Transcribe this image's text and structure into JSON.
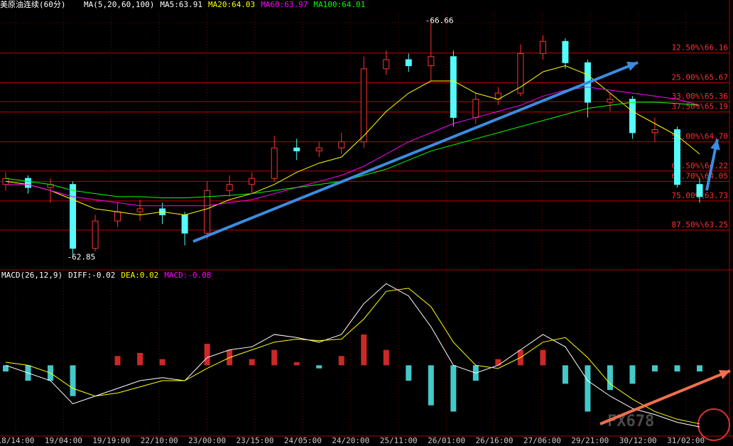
{
  "chart_data": {
    "type": "candlestick",
    "title": "美原油连续(60分)",
    "indicator_labels": [
      {
        "text": "MA(5,20,60,100)",
        "color": "#ffffff"
      },
      {
        "text": "MA5:63.91",
        "color": "#ffffff"
      },
      {
        "text": "MA20:64.03",
        "color": "#ffff00"
      },
      {
        "text": "MA60:63.97",
        "color": "#ff00ff"
      },
      {
        "text": "MA100:64.01",
        "color": "#00ff00"
      }
    ],
    "x_labels": [
      "18/14:00",
      "19/04:00",
      "19/19:00",
      "22/10:00",
      "23/00:00",
      "23/15:00",
      "24/05:00",
      "24/20:00",
      "25/11:00",
      "26/01:00",
      "26/16:00",
      "27/06:00",
      "29/21:00",
      "30/12:00",
      "31/02:00"
    ],
    "ylim": [
      62.62,
      66.82
    ],
    "up_color": "#ff3232",
    "down_color": "#54fcfc",
    "ohlc": [
      [
        64.0,
        64.2,
        63.9,
        64.1
      ],
      [
        64.1,
        64.15,
        63.85,
        63.95
      ],
      [
        63.95,
        64.1,
        63.7,
        64.0
      ],
      [
        64.0,
        64.05,
        62.85,
        62.95
      ],
      [
        62.95,
        63.5,
        62.9,
        63.4
      ],
      [
        63.4,
        63.7,
        63.3,
        63.55
      ],
      [
        63.55,
        63.75,
        63.4,
        63.6
      ],
      [
        63.6,
        63.7,
        63.35,
        63.5
      ],
      [
        63.5,
        63.55,
        63.0,
        63.2
      ],
      [
        63.2,
        64.05,
        63.1,
        63.9
      ],
      [
        63.9,
        64.15,
        63.8,
        64.0
      ],
      [
        64.0,
        64.2,
        63.85,
        64.1
      ],
      [
        64.1,
        64.8,
        64.05,
        64.6
      ],
      [
        64.6,
        64.75,
        64.4,
        64.55
      ],
      [
        64.55,
        64.7,
        64.45,
        64.6
      ],
      [
        64.6,
        64.85,
        64.5,
        64.7
      ],
      [
        64.7,
        66.1,
        64.6,
        65.9
      ],
      [
        65.9,
        66.2,
        65.8,
        66.05
      ],
      [
        66.05,
        66.15,
        65.85,
        65.95
      ],
      [
        65.95,
        66.66,
        65.7,
        66.1
      ],
      [
        66.1,
        66.2,
        64.95,
        65.1
      ],
      [
        65.1,
        65.5,
        65.0,
        65.4
      ],
      [
        65.4,
        65.6,
        65.3,
        65.5
      ],
      [
        65.5,
        66.3,
        65.45,
        66.15
      ],
      [
        66.15,
        66.45,
        66.05,
        66.35
      ],
      [
        66.35,
        66.4,
        65.9,
        66.0
      ],
      [
        66.0,
        66.05,
        65.1,
        65.35
      ],
      [
        65.35,
        65.5,
        65.2,
        65.4
      ],
      [
        65.4,
        65.45,
        64.75,
        64.85
      ],
      [
        64.85,
        65.1,
        64.7,
        64.9
      ],
      [
        64.9,
        64.95,
        63.95,
        64.0
      ],
      [
        64.0,
        64.1,
        63.7,
        63.8
      ]
    ],
    "series": [
      {
        "name": "MA20",
        "color": "#ffff00",
        "values": [
          64.05,
          64.0,
          63.9,
          63.75,
          63.6,
          63.55,
          63.5,
          63.55,
          63.5,
          63.6,
          63.75,
          63.85,
          64.0,
          64.2,
          64.35,
          64.45,
          64.8,
          65.2,
          65.5,
          65.7,
          65.7,
          65.5,
          65.4,
          65.6,
          65.85,
          65.95,
          65.8,
          65.5,
          65.2,
          65.0,
          64.8,
          64.5
        ]
      },
      {
        "name": "MA60",
        "color": "#ff00ff",
        "values": [
          64.0,
          64.0,
          63.9,
          63.8,
          63.75,
          63.7,
          63.65,
          63.65,
          63.65,
          63.65,
          63.7,
          63.75,
          63.85,
          63.95,
          64.05,
          64.15,
          64.3,
          64.5,
          64.7,
          64.85,
          65.0,
          65.1,
          65.2,
          65.3,
          65.45,
          65.55,
          65.6,
          65.55,
          65.5,
          65.45,
          65.4,
          65.3
        ]
      },
      {
        "name": "MA100",
        "color": "#00ff00",
        "values": [
          64.1,
          64.05,
          64.0,
          63.9,
          63.85,
          63.8,
          63.8,
          63.78,
          63.78,
          63.8,
          63.82,
          63.85,
          63.9,
          63.95,
          64.0,
          64.05,
          64.15,
          64.25,
          64.4,
          64.55,
          64.65,
          64.75,
          64.85,
          64.95,
          65.05,
          65.15,
          65.25,
          65.3,
          65.35,
          65.35,
          65.33,
          65.3
        ]
      }
    ],
    "fib_levels": [
      {
        "value": 66.16,
        "label": "12.50%\\66.16"
      },
      {
        "value": 65.67,
        "label": "25.00%\\65.67"
      },
      {
        "value": 65.36,
        "label": "33.00%\\65.36"
      },
      {
        "value": 65.19,
        "label": "37.50%\\65.19"
      },
      {
        "value": 64.7,
        "label": "50.00%\\64.70"
      },
      {
        "value": 64.22,
        "label": "62.50%\\64.22"
      },
      {
        "value": 64.05,
        "label": "66.70%\\64.05"
      },
      {
        "value": 63.73,
        "label": "75.00%\\63.73"
      },
      {
        "value": 63.25,
        "label": "87.50%\\63.25"
      }
    ],
    "annotations": [
      "-66.66",
      "-62.85"
    ],
    "macd": {
      "labels": [
        {
          "text": "MACD(26,12,9)",
          "color": "#ffffff"
        },
        {
          "text": "DIFF:-0.02",
          "color": "#ffffff"
        },
        {
          "text": "DEA:0.02",
          "color": "#ffff00"
        },
        {
          "text": "MACD:-0.08",
          "color": "#ff00ff"
        }
      ],
      "ylim": [
        -0.45,
        0.55
      ],
      "diff": [
        0.0,
        -0.05,
        -0.1,
        -0.25,
        -0.2,
        -0.15,
        -0.1,
        -0.08,
        -0.1,
        0.05,
        0.1,
        0.12,
        0.2,
        0.18,
        0.15,
        0.2,
        0.4,
        0.53,
        0.45,
        0.25,
        0.0,
        -0.05,
        0.0,
        0.1,
        0.2,
        0.12,
        -0.1,
        -0.2,
        -0.28,
        -0.32,
        -0.37,
        -0.4
      ],
      "dea": [
        0.02,
        0.0,
        -0.05,
        -0.15,
        -0.2,
        -0.18,
        -0.14,
        -0.1,
        -0.1,
        -0.02,
        0.05,
        0.1,
        0.15,
        0.17,
        0.16,
        0.17,
        0.3,
        0.48,
        0.5,
        0.38,
        0.15,
        0.0,
        -0.02,
        0.05,
        0.15,
        0.18,
        0.05,
        -0.12,
        -0.22,
        -0.3,
        -0.35,
        -0.38
      ],
      "hist": [
        -0.04,
        -0.1,
        -0.1,
        -0.2,
        0.0,
        0.06,
        0.08,
        0.04,
        0.0,
        0.14,
        0.1,
        0.04,
        0.1,
        0.02,
        -0.02,
        0.06,
        0.2,
        0.1,
        -0.1,
        -0.26,
        -0.3,
        -0.1,
        0.04,
        0.1,
        0.1,
        -0.12,
        -0.3,
        -0.16,
        -0.12,
        -0.04,
        -0.04,
        -0.04
      ]
    },
    "watermark": "FX678"
  }
}
